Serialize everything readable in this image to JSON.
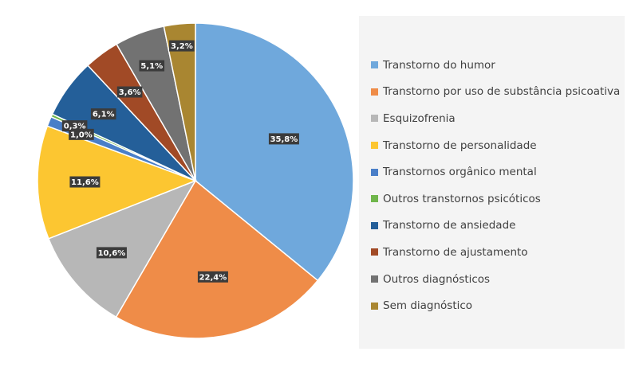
{
  "chart_data": {
    "type": "pie",
    "title": "",
    "legend_position": "right",
    "slices": [
      {
        "name": "Transtorno do humor",
        "value": 35.8,
        "label": "35,8%",
        "color": "#6fa8dc"
      },
      {
        "name": "Transtorno por uso de substância psicoativa",
        "value": 22.4,
        "label": "22,4%",
        "color": "#ef8c48"
      },
      {
        "name": "Esquizofrenia",
        "value": 10.6,
        "label": "10,6%",
        "color": "#b7b7b7"
      },
      {
        "name": "Transtorno de personalidade",
        "value": 11.6,
        "label": "11,6%",
        "color": "#fcc631"
      },
      {
        "name": "Transtornos orgânico mental",
        "value": 1.0,
        "label": "1,0%",
        "color": "#4a7fc8"
      },
      {
        "name": "Outros transtornos psicóticos",
        "value": 0.3,
        "label": "0,3%",
        "color": "#70b64b"
      },
      {
        "name": "Transtorno de ansiedade",
        "value": 6.1,
        "label": "6,1%",
        "color": "#245f99"
      },
      {
        "name": "Transtorno de ajustamento",
        "value": 3.6,
        "label": "3,6%",
        "color": "#a14a26"
      },
      {
        "name": "Outros diagnósticos",
        "value": 5.1,
        "label": "5,1%",
        "color": "#727272"
      },
      {
        "name": "Sem diagnóstico",
        "value": 3.2,
        "label": "3,2%",
        "color": "#a98631"
      }
    ]
  }
}
